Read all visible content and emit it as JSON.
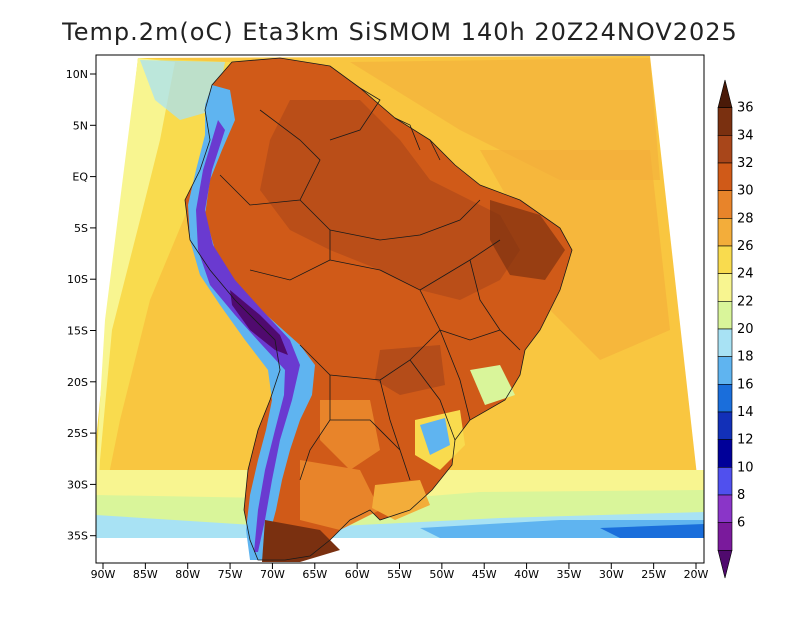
{
  "title": "Temp.2m(oC) Eta3km SiSMOM 140h 20Z24NOV2025",
  "lat_labels": [
    "10N",
    "5N",
    "EQ",
    "5S",
    "10S",
    "15S",
    "20S",
    "25S",
    "30S",
    "35S"
  ],
  "lat_values": [
    10,
    5,
    0,
    -5,
    -10,
    -15,
    -20,
    -25,
    -30,
    -35
  ],
  "lon_labels": [
    "90W",
    "85W",
    "80W",
    "75W",
    "70W",
    "65W",
    "60W",
    "55W",
    "50W",
    "45W",
    "40W",
    "35W",
    "30W",
    "25W",
    "20W"
  ],
  "lon_values": [
    -90,
    -85,
    -80,
    -75,
    -70,
    -65,
    -60,
    -55,
    -50,
    -45,
    -40,
    -35,
    -30,
    -25,
    -20
  ],
  "colorbar": {
    "labels": [
      "36",
      "34",
      "32",
      "30",
      "28",
      "26",
      "24",
      "22",
      "20",
      "18",
      "16",
      "14",
      "12",
      "10",
      "8",
      "6"
    ],
    "colors": [
      "#4a1a08",
      "#7a3010",
      "#a8461a",
      "#d05a18",
      "#e8842a",
      "#f3ad3a",
      "#f9db4e",
      "#f8f590",
      "#d9f59a",
      "#a8e2f4",
      "#5fb4f0",
      "#1a6edb",
      "#1230b8",
      "#000099",
      "#5050ee",
      "#8a35c8",
      "#7a1a9c",
      "#500a6e"
    ]
  },
  "palette": {
    "ocean_warm": "#f9c640",
    "ocean_mid": "#f9db4e",
    "ocean_cool": "#f8f590",
    "ocean_cold": "#d9f59a",
    "ocean_colder": "#a8e2f4",
    "land_hot": "#d05a18",
    "land_very_hot": "#a8461a",
    "land_warm": "#e8842a",
    "andes_cold": "#6a3ad0",
    "andes_mid": "#5fb4f0",
    "border": "#1a1a1a"
  }
}
